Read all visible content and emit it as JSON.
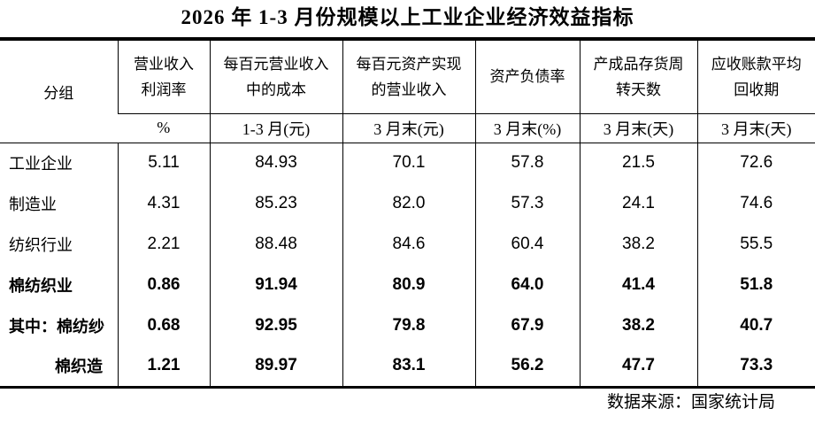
{
  "title": "2026 年 1-3 月份规模以上工业企业经济效益指标",
  "colors": {
    "text": "#000000",
    "border": "#000000",
    "background": "#ffffff"
  },
  "chart_data": {
    "type": "table",
    "title": "2026 年 1-3 月份规模以上工业企业经济效益指标",
    "group_column_header": "分组",
    "columns": [
      {
        "name_line1": "营业收入",
        "name_line2": "利润率",
        "period": "%"
      },
      {
        "name_line1": "每百元营业收入",
        "name_line2": "中的成本",
        "period": "1-3 月(元)"
      },
      {
        "name_line1": "每百元资产实现",
        "name_line2": "的营业收入",
        "period": "3 月末(元)"
      },
      {
        "name_line1": "资产负债率",
        "name_line2": "",
        "period": "3 月末(%)"
      },
      {
        "name_line1": "产成品存货周",
        "name_line2": "转天数",
        "period": "3 月末(天)"
      },
      {
        "name_line1": "应收账款平均",
        "name_line2": "回收期",
        "period": "3 月末(天)"
      }
    ],
    "rows": [
      {
        "label": "工业企业",
        "emphasis": false,
        "indent": false,
        "values": [
          "5.11",
          "84.93",
          "70.1",
          "57.8",
          "21.5",
          "72.6"
        ]
      },
      {
        "label": "制造业",
        "emphasis": false,
        "indent": false,
        "values": [
          "4.31",
          "85.23",
          "82.0",
          "57.3",
          "24.1",
          "74.6"
        ]
      },
      {
        "label": "纺织行业",
        "emphasis": false,
        "indent": false,
        "values": [
          "2.21",
          "88.48",
          "84.6",
          "60.4",
          "38.2",
          "55.5"
        ]
      },
      {
        "label": "棉纺织业",
        "emphasis": true,
        "indent": false,
        "values": [
          "0.86",
          "91.94",
          "80.9",
          "64.0",
          "41.4",
          "51.8"
        ]
      },
      {
        "label": "其中：棉纺纱",
        "emphasis": true,
        "indent": false,
        "values": [
          "0.68",
          "92.95",
          "79.8",
          "67.9",
          "38.2",
          "40.7"
        ]
      },
      {
        "label": "棉织造",
        "emphasis": true,
        "indent": true,
        "values": [
          "1.21",
          "89.97",
          "83.1",
          "56.2",
          "47.7",
          "73.3"
        ]
      }
    ],
    "source": "数据来源：国家统计局"
  }
}
